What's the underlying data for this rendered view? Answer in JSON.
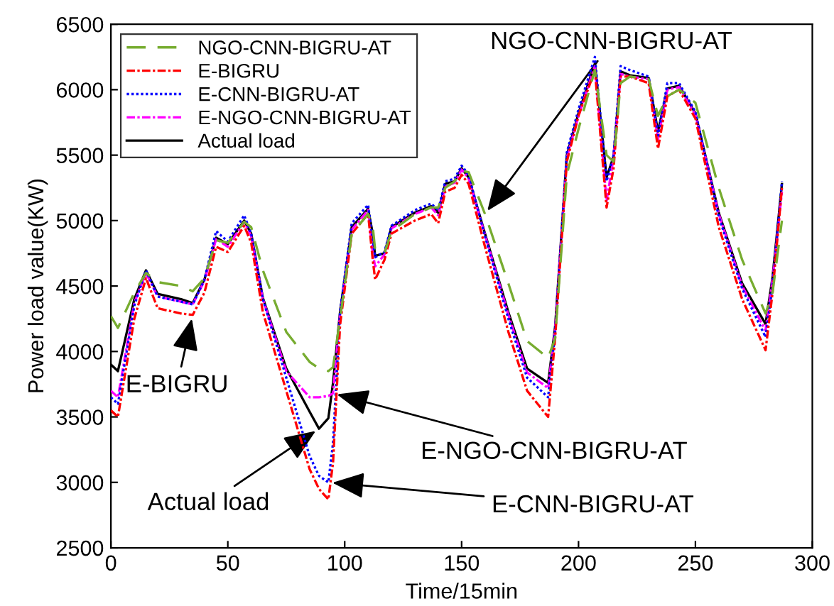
{
  "chart_data": {
    "type": "line",
    "xlabel": "Time/15min",
    "ylabel": "Power load value(KW)",
    "x": [
      0,
      3,
      10,
      15,
      20,
      30,
      35,
      40,
      45,
      50,
      57,
      60,
      65,
      75,
      85,
      89,
      93,
      95,
      98,
      103,
      110,
      112,
      113,
      117,
      120,
      130,
      137,
      140,
      143,
      147,
      150,
      153,
      160,
      170,
      178,
      187,
      190,
      195,
      200,
      207,
      212,
      215,
      218,
      222,
      230,
      234,
      238,
      243,
      250,
      260,
      270,
      280,
      283,
      287
    ],
    "series": [
      {
        "name": "NGO-CNN-BIGRU-AT",
        "color": "#77ac30",
        "line_style": "dashed",
        "values": [
          4270,
          4180,
          4450,
          4600,
          4530,
          4500,
          4460,
          4560,
          4850,
          4830,
          4990,
          4950,
          4620,
          4150,
          3920,
          3870,
          3850,
          3880,
          4250,
          4900,
          5050,
          4950,
          4780,
          4750,
          4920,
          5050,
          5100,
          5100,
          5250,
          5300,
          5380,
          5370,
          5050,
          4520,
          4080,
          3950,
          4100,
          5350,
          5700,
          6150,
          5500,
          5450,
          6050,
          6100,
          6080,
          5800,
          5950,
          6000,
          5900,
          5250,
          4700,
          4290,
          4450,
          5000
        ]
      },
      {
        "name": "E-BIGRU",
        "color": "#ff0000",
        "line_style": "dashdot",
        "values": [
          3550,
          3500,
          4250,
          4560,
          4330,
          4290,
          4280,
          4450,
          4800,
          4760,
          4960,
          4830,
          4300,
          3700,
          3100,
          2950,
          2870,
          3150,
          4200,
          4900,
          5050,
          4700,
          4550,
          4700,
          4900,
          5000,
          5050,
          4980,
          5220,
          5250,
          5350,
          5280,
          4800,
          4150,
          3700,
          3500,
          4100,
          5450,
          5800,
          6150,
          5100,
          5400,
          6100,
          6100,
          6050,
          5550,
          5950,
          6000,
          5780,
          4950,
          4400,
          4010,
          4450,
          5250
        ]
      },
      {
        "name": "E-CNN-BIGRU-AT",
        "color": "#0000ff",
        "line_style": "dotted",
        "values": [
          3650,
          3600,
          4350,
          4620,
          4420,
          4380,
          4360,
          4550,
          4920,
          4840,
          5040,
          4900,
          4400,
          3800,
          3200,
          3050,
          3000,
          3300,
          4300,
          4980,
          5120,
          4850,
          4720,
          4760,
          4960,
          5080,
          5130,
          5080,
          5300,
          5320,
          5420,
          5350,
          4880,
          4250,
          3800,
          3650,
          4150,
          5520,
          5850,
          6250,
          5300,
          5500,
          6180,
          6150,
          6100,
          5650,
          6050,
          6050,
          5830,
          5030,
          4480,
          4110,
          4500,
          5300
        ]
      },
      {
        "name": "E-NGO-CNN-BIGRU-AT",
        "color": "#ff00ff",
        "line_style": "dashdot",
        "values": [
          3700,
          3650,
          4370,
          4600,
          4420,
          4380,
          4360,
          4540,
          4860,
          4800,
          4990,
          4880,
          4400,
          3850,
          3650,
          3650,
          3660,
          3680,
          4280,
          4930,
          5080,
          4750,
          4650,
          4740,
          4940,
          5050,
          5100,
          5040,
          5260,
          5290,
          5390,
          5320,
          4890,
          4280,
          3840,
          3720,
          4170,
          5480,
          5800,
          6180,
          5150,
          5480,
          6120,
          6100,
          6080,
          5620,
          6000,
          6020,
          5810,
          5050,
          4500,
          4160,
          4550,
          5220
        ]
      },
      {
        "name": "Actual load",
        "color": "#000000",
        "line_style": "solid",
        "values": [
          3900,
          3850,
          4400,
          4620,
          4440,
          4400,
          4370,
          4550,
          4870,
          4820,
          5000,
          4900,
          4410,
          3870,
          3540,
          3410,
          3490,
          3760,
          4300,
          4950,
          5090,
          4900,
          4730,
          4750,
          4950,
          5060,
          5110,
          5060,
          5280,
          5300,
          5400,
          5330,
          4900,
          4300,
          3870,
          3760,
          4190,
          5500,
          5820,
          6200,
          5330,
          5490,
          6140,
          6110,
          6090,
          5680,
          6010,
          6030,
          5820,
          5060,
          4520,
          4210,
          4570,
          5280
        ]
      }
    ],
    "annotations": [
      {
        "text": "NGO-CNN-BIGRU-AT",
        "x": 160,
        "y": 5050
      },
      {
        "text": "E-BIGRU",
        "x": 35,
        "y": 4280
      },
      {
        "text": "E-NGO-CNN-BIGRU-AT",
        "x": 95,
        "y": 3680
      },
      {
        "text": "Actual load",
        "x": 89,
        "y": 3410
      },
      {
        "text": "E-CNN-BIGRU-AT",
        "x": 93,
        "y": 3000
      }
    ],
    "xlim": [
      0,
      300
    ],
    "xticks": [
      0,
      50,
      100,
      150,
      200,
      250,
      300
    ],
    "ylim": [
      2500,
      6500
    ],
    "yticks": [
      2500,
      3000,
      3500,
      4000,
      4500,
      5000,
      5500,
      6000,
      6500
    ],
    "grid": false,
    "legend": "top left",
    "marker": "none"
  }
}
